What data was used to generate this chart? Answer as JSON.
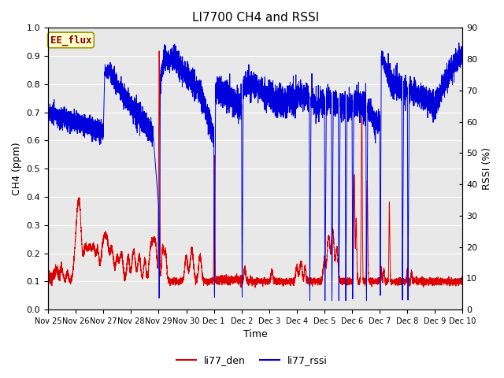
{
  "title": "LI7700 CH4 and RSSI",
  "xlabel": "Time",
  "ylabel_left": "CH4 (ppm)",
  "ylabel_right": "RSSI (%)",
  "legend_label1": "li77_den",
  "legend_label2": "li77_rssi",
  "annotation": "EE_flux",
  "ylim_left": [
    0.0,
    1.0
  ],
  "ylim_right": [
    0,
    90
  ],
  "yticks_left": [
    0.0,
    0.1,
    0.2,
    0.3,
    0.4,
    0.5,
    0.6,
    0.7,
    0.8,
    0.9,
    1.0
  ],
  "yticks_right": [
    0,
    10,
    20,
    30,
    40,
    50,
    60,
    70,
    80,
    90
  ],
  "color_ch4": "#dd0000",
  "color_rssi": "#0000dd",
  "bg_color": "#e8e8e8",
  "fig_color": "#ffffff",
  "title_fontsize": 11,
  "axis_label_fontsize": 9,
  "tick_fontsize": 8,
  "legend_fontsize": 9,
  "annotation_fontsize": 9,
  "xtick_labels": [
    "Nov 25",
    "Nov 26",
    "Nov 27",
    "Nov 28",
    "Nov 29",
    "Nov 30",
    "Dec 1",
    "Dec 2",
    "Dec 3",
    "Dec 4",
    "Dec 5",
    "Dec 6",
    "Dec 7",
    "Dec 8",
    "Dec 9",
    "Dec 10"
  ],
  "xtick_positions": [
    0,
    1,
    2,
    3,
    4,
    5,
    6,
    7,
    8,
    9,
    10,
    11,
    12,
    13,
    14,
    15
  ]
}
